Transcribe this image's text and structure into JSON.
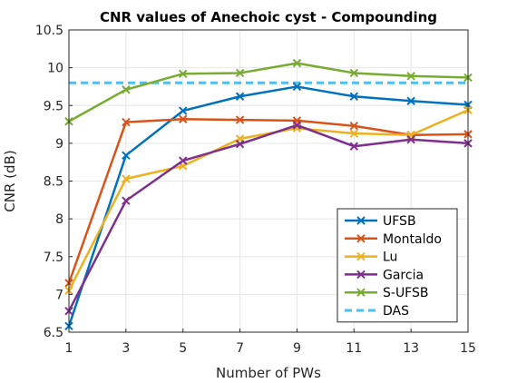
{
  "chart_data": {
    "type": "line",
    "title": "CNR values of Anechoic cyst - Compounding",
    "xlabel": "Number of PWs",
    "ylabel": "CNR (dB)",
    "x": [
      1,
      3,
      5,
      7,
      9,
      11,
      13,
      15
    ],
    "xlim": [
      1,
      15
    ],
    "ylim": [
      6.5,
      10.5
    ],
    "xticks": [
      "1",
      "3",
      "5",
      "7",
      "9",
      "11",
      "13",
      "15"
    ],
    "yticks": [
      "6.5",
      "7",
      "7.5",
      "8",
      "8.5",
      "9",
      "9.5",
      "10",
      "10.5"
    ],
    "grid": true,
    "legend_position": "bottom-right",
    "series": [
      {
        "name": "UFSB",
        "color": "#0072bd",
        "marker": "x",
        "values": [
          6.58,
          8.84,
          9.43,
          9.62,
          9.75,
          9.62,
          9.56,
          9.51
        ]
      },
      {
        "name": "Montaldo",
        "color": "#d95319",
        "marker": "x",
        "values": [
          7.15,
          9.28,
          9.32,
          9.31,
          9.3,
          9.23,
          9.11,
          9.12
        ]
      },
      {
        "name": "Lu",
        "color": "#edb120",
        "marker": "x",
        "values": [
          7.05,
          8.53,
          8.7,
          9.06,
          9.2,
          9.13,
          9.11,
          9.44
        ]
      },
      {
        "name": "Garcia",
        "color": "#7e2f8e",
        "marker": "x",
        "values": [
          6.78,
          8.24,
          8.77,
          8.99,
          9.24,
          8.96,
          9.05,
          9.0
        ]
      },
      {
        "name": "S-UFSB",
        "color": "#77ac30",
        "marker": "x",
        "values": [
          9.29,
          9.71,
          9.92,
          9.93,
          10.06,
          9.93,
          9.89,
          9.87
        ]
      }
    ],
    "reference_lines": [
      {
        "name": "DAS",
        "color": "#4dbeee",
        "style": "dashed",
        "value": 9.8
      }
    ]
  }
}
